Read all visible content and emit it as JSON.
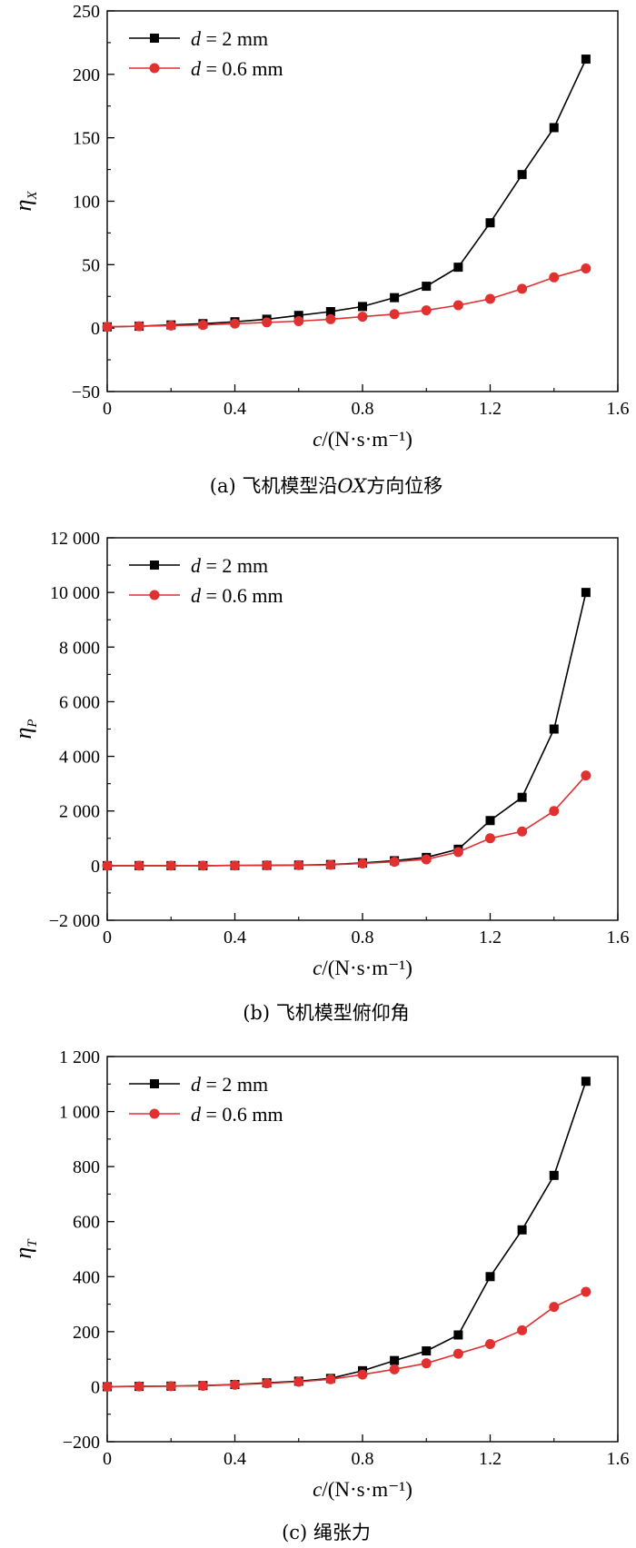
{
  "chart_data": [
    {
      "type": "line",
      "caption": "(a) 飞机模型沿OX方向位移",
      "ylabel": "η",
      "ylabel_sub": "X",
      "xlabel": "c/(N·s·m⁻¹)",
      "xlim": [
        0,
        1.6
      ],
      "ylim": [
        -50,
        250
      ],
      "xticks": [
        0,
        0.4,
        0.8,
        1.2,
        1.6
      ],
      "xtick_labels": [
        "0",
        "0.4",
        "0.8",
        "1.2",
        "1.6"
      ],
      "yticks": [
        -50,
        0,
        50,
        100,
        150,
        200,
        250
      ],
      "ytick_labels": [
        "−50",
        "0",
        "50",
        "100",
        "150",
        "200",
        "250"
      ],
      "legend_position": "top-left",
      "x": [
        0,
        0.1,
        0.2,
        0.3,
        0.4,
        0.5,
        0.6,
        0.7,
        0.8,
        0.9,
        1.0,
        1.1,
        1.2,
        1.3,
        1.4,
        1.5
      ],
      "series": [
        {
          "name": "d = 2 mm",
          "color": "#000000",
          "marker": "square",
          "values": [
            1,
            1.5,
            2.5,
            3.5,
            5,
            7,
            10,
            13,
            17,
            24,
            33,
            48,
            83,
            121,
            158,
            212
          ]
        },
        {
          "name": "d = 0.6 mm",
          "color": "#e03030",
          "marker": "circle",
          "values": [
            1,
            1.5,
            2,
            2.5,
            3.5,
            4.5,
            5.5,
            7,
            9,
            11,
            14,
            18,
            23,
            31,
            40,
            47
          ]
        }
      ]
    },
    {
      "type": "line",
      "caption": "(b) 飞机模型俯仰角",
      "ylabel": "η",
      "ylabel_sub": "P",
      "xlabel": "c/(N·s·m⁻¹)",
      "xlim": [
        0,
        1.6
      ],
      "ylim": [
        -2000,
        12000
      ],
      "xticks": [
        0,
        0.4,
        0.8,
        1.2,
        1.6
      ],
      "xtick_labels": [
        "0",
        "0.4",
        "0.8",
        "1.2",
        "1.6"
      ],
      "yticks": [
        -2000,
        0,
        2000,
        4000,
        6000,
        8000,
        10000,
        12000
      ],
      "ytick_labels": [
        "−2 000",
        "0",
        "2 000",
        "4 000",
        "6 000",
        "8 000",
        "10 000",
        "12 000"
      ],
      "legend_position": "top-left",
      "x": [
        0,
        0.1,
        0.2,
        0.3,
        0.4,
        0.5,
        0.6,
        0.7,
        0.8,
        0.9,
        1.0,
        1.1,
        1.2,
        1.3,
        1.4,
        1.5
      ],
      "series": [
        {
          "name": "d = 2 mm",
          "color": "#000000",
          "marker": "square",
          "values": [
            0,
            0,
            0,
            0,
            5,
            10,
            20,
            40,
            100,
            180,
            300,
            600,
            1650,
            2500,
            5000,
            10000
          ]
        },
        {
          "name": "d = 0.6 mm",
          "color": "#e03030",
          "marker": "circle",
          "values": [
            0,
            0,
            0,
            0,
            5,
            10,
            15,
            30,
            80,
            140,
            230,
            500,
            1000,
            1250,
            2000,
            3300
          ]
        }
      ]
    },
    {
      "type": "line",
      "caption": "(c) 绳张力",
      "ylabel": "η",
      "ylabel_sub": "T",
      "xlabel": "c/(N·s·m⁻¹)",
      "xlim": [
        0,
        1.6
      ],
      "ylim": [
        -200,
        1200
      ],
      "xticks": [
        0,
        0.4,
        0.8,
        1.2,
        1.6
      ],
      "xtick_labels": [
        "0",
        "0.4",
        "0.8",
        "1.2",
        "1.6"
      ],
      "yticks": [
        -200,
        0,
        200,
        400,
        600,
        800,
        1000,
        1200
      ],
      "ytick_labels": [
        "−200",
        "0",
        "200",
        "400",
        "600",
        "800",
        "1 000",
        "1 200"
      ],
      "legend_position": "top-left",
      "x": [
        0,
        0.1,
        0.2,
        0.3,
        0.4,
        0.5,
        0.6,
        0.7,
        0.8,
        0.9,
        1.0,
        1.1,
        1.2,
        1.3,
        1.4,
        1.5
      ],
      "series": [
        {
          "name": "d = 2 mm",
          "color": "#000000",
          "marker": "square",
          "values": [
            0,
            1,
            2,
            4,
            8,
            14,
            20,
            30,
            58,
            95,
            130,
            188,
            400,
            570,
            768,
            1110
          ]
        },
        {
          "name": "d = 0.6 mm",
          "color": "#e03030",
          "marker": "circle",
          "values": [
            0,
            1,
            2,
            3,
            7,
            12,
            18,
            27,
            44,
            63,
            85,
            120,
            155,
            205,
            290,
            345
          ]
        }
      ]
    }
  ]
}
